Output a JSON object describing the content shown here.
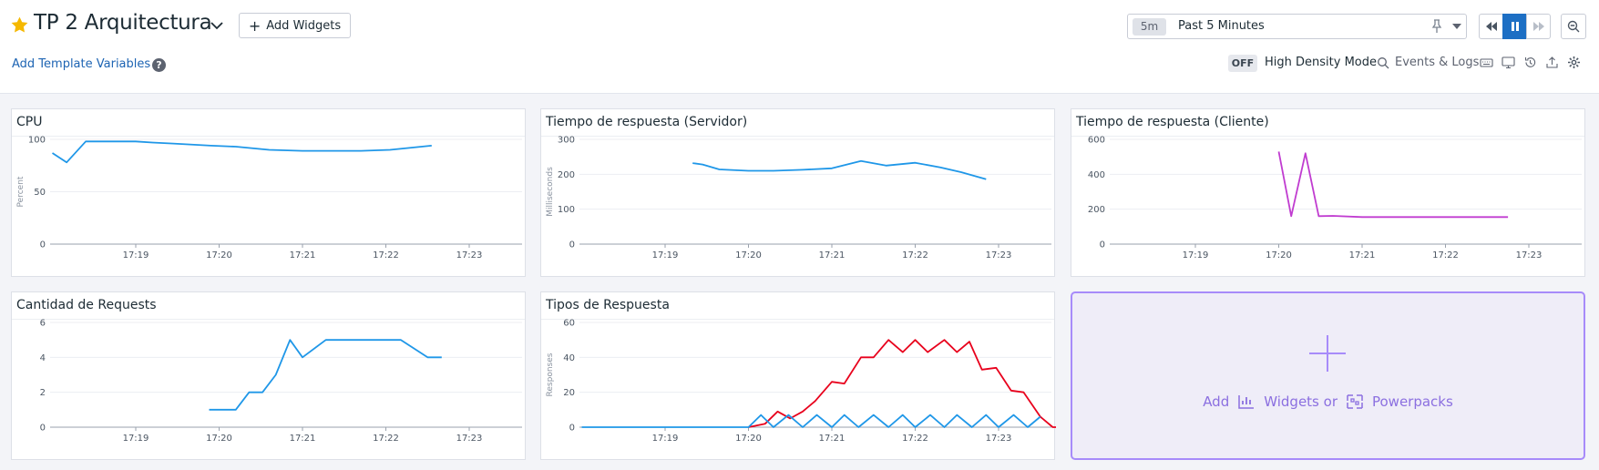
{
  "header": {
    "title": "TP 2 Arquitectura",
    "add_widgets_label": "Add Widgets",
    "template_variables_label": "Add Template Variables",
    "help_glyph": "?",
    "favorite_icon": "star-icon"
  },
  "time": {
    "badge": "5m",
    "label": "Past 5 Minutes"
  },
  "toolbar": {
    "high_density_state": "OFF",
    "high_density_label": "High Density Mode",
    "events_label": "Events & Logs"
  },
  "colors": {
    "blue": "#1f97e8",
    "red": "#e8001c",
    "magenta": "#c03cd0",
    "accent": "#1d6fc4",
    "add_purple": "#8b6fe0"
  },
  "widgets": [
    {
      "id": "cpu",
      "title": "CPU",
      "chart_data": {
        "type": "line",
        "ylabel": "Percent",
        "x_ticks": [
          "17:19",
          "17:20",
          "17:21",
          "17:22",
          "17:23"
        ],
        "y_ticks": [
          0,
          50,
          100
        ],
        "ylim": [
          0,
          100
        ],
        "x_range_min": [
          -1.0,
          4.0
        ],
        "series": [
          {
            "color": "#1f97e8",
            "x": [
              -1.0,
              -0.83,
              -0.6,
              -0.3,
              0.0,
              0.2,
              0.45,
              0.9,
              1.2,
              1.6,
              2.0,
              2.35,
              2.7,
              3.05,
              3.55
            ],
            "y": [
              87,
              78,
              98,
              98,
              98,
              97,
              96,
              94,
              93,
              90,
              89,
              89,
              89,
              90,
              94
            ]
          }
        ]
      }
    },
    {
      "id": "server",
      "title": "Tiempo de respuesta (Servidor)",
      "chart_data": {
        "type": "line",
        "ylabel": "Milliseconds",
        "x_ticks": [
          "17:19",
          "17:20",
          "17:21",
          "17:22",
          "17:23"
        ],
        "y_ticks": [
          0,
          100,
          200,
          300
        ],
        "ylim": [
          0,
          300
        ],
        "x_range_min": [
          -1.0,
          4.0
        ],
        "series": [
          {
            "color": "#1f97e8",
            "x": [
              0.33,
              0.45,
              0.65,
              1.0,
              1.3,
              1.65,
              2.0,
              2.35,
              2.65,
              3.0,
              3.3,
              3.55,
              3.85
            ],
            "y": [
              232,
              228,
              214,
              210,
              210,
              213,
              217,
              238,
              225,
              233,
              220,
              206,
              186
            ]
          }
        ]
      }
    },
    {
      "id": "client",
      "title": "Tiempo de respuesta (Cliente)",
      "chart_data": {
        "type": "line",
        "ylabel": "",
        "x_ticks": [
          "17:19",
          "17:20",
          "17:21",
          "17:22",
          "17:23"
        ],
        "y_ticks": [
          0,
          200,
          400,
          600
        ],
        "ylim": [
          0,
          600
        ],
        "x_range_min": [
          -1.0,
          4.0
        ],
        "series": [
          {
            "color": "#c03cd0",
            "x": [
              1.0,
              1.15,
              1.32,
              1.48,
              1.65,
              2.0,
              2.5,
              3.0,
              3.5,
              3.75
            ],
            "y": [
              530,
              160,
              520,
              160,
              162,
              155,
              155,
              155,
              155,
              155
            ]
          }
        ]
      }
    },
    {
      "id": "requests",
      "title": "Cantidad de Requests",
      "chart_data": {
        "type": "line",
        "ylabel": "",
        "x_ticks": [
          "17:19",
          "17:20",
          "17:21",
          "17:22",
          "17:23"
        ],
        "y_ticks": [
          0,
          2,
          4,
          6
        ],
        "ylim": [
          0,
          6
        ],
        "x_range_min": [
          -1.0,
          4.0
        ],
        "series": [
          {
            "color": "#1f97e8",
            "x": [
              0.88,
              1.2,
              1.36,
              1.52,
              1.68,
              1.85,
              2.0,
              2.28,
              2.55,
              2.75,
              3.18,
              3.5,
              3.67
            ],
            "y": [
              1,
              1,
              2,
              2,
              3,
              5,
              4,
              5,
              5,
              5,
              5,
              4,
              4
            ]
          }
        ]
      }
    },
    {
      "id": "types",
      "title": "Tipos de Respuesta",
      "chart_data": {
        "type": "line",
        "ylabel": "Responses",
        "x_ticks": [
          "17:19",
          "17:20",
          "17:21",
          "17:22",
          "17:23"
        ],
        "y_ticks": [
          0,
          20,
          40,
          60
        ],
        "ylim": [
          0,
          60
        ],
        "x_range_min": [
          -1.0,
          4.0
        ],
        "series": [
          {
            "color": "#e8001c",
            "x": [
              1.0,
              1.2,
              1.35,
              1.5,
              1.65,
              1.8,
              2.0,
              2.15,
              2.35,
              2.5,
              2.68,
              2.85,
              3.0,
              3.15,
              3.35,
              3.5,
              3.65,
              3.8,
              3.97,
              4.15,
              4.3,
              4.5,
              4.65,
              4.8
            ],
            "y": [
              0,
              2,
              9,
              5,
              9,
              15,
              26,
              25,
              40,
              40,
              50,
              43,
              50,
              43,
              50,
              43,
              49,
              33,
              34,
              21,
              20,
              6,
              0,
              0
            ]
          },
          {
            "color": "#1f97e8",
            "x": [
              -1.0,
              0.0,
              1.0,
              1.15,
              1.3,
              1.48,
              1.65,
              1.82,
              2.0,
              2.15,
              2.32,
              2.5,
              2.68,
              2.85,
              3.0,
              3.18,
              3.35,
              3.5,
              3.68,
              3.85,
              4.0,
              4.18,
              4.35,
              4.5
            ],
            "y": [
              0,
              0,
              0,
              7,
              0,
              7,
              0,
              7,
              0,
              7,
              0,
              7,
              0,
              7,
              0,
              7,
              0,
              7,
              0,
              7,
              0,
              7,
              0,
              6
            ]
          }
        ]
      }
    }
  ],
  "add_panel": {
    "add_label": "Add",
    "widgets_label": "Widgets or",
    "powerpacks_label": "Powerpacks"
  }
}
